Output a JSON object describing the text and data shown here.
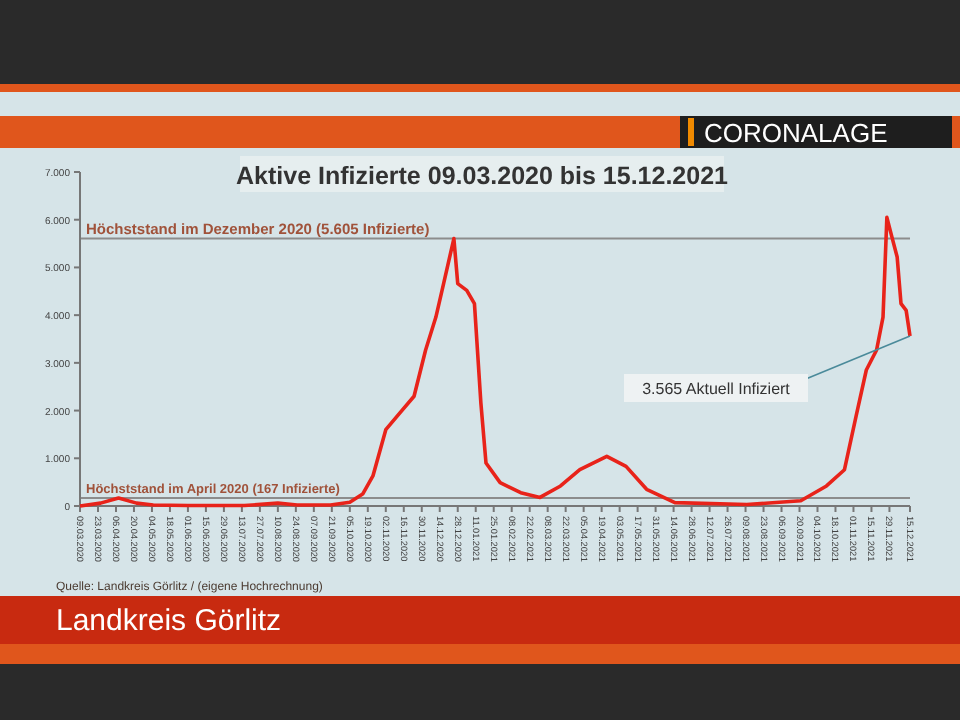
{
  "chart_data": {
    "type": "line",
    "title": "Aktive Infizierte 09.03.2020 bis 15.12.2021",
    "subtitle": "CORONALAGE",
    "x": [
      "2020-03-09",
      "2020-03-25",
      "2020-04-08",
      "2020-04-22",
      "2020-05-05",
      "2020-06-01",
      "2020-07-15",
      "2020-08-10",
      "2020-08-25",
      "2020-09-20",
      "2020-10-05",
      "2020-10-15",
      "2020-10-23",
      "2020-11-02",
      "2020-11-13",
      "2020-11-24",
      "2020-12-03",
      "2020-12-11",
      "2020-12-17",
      "2020-12-25",
      "2020-12-28",
      "2021-01-04",
      "2021-01-10",
      "2021-01-15",
      "2021-01-19",
      "2021-01-30",
      "2021-02-15",
      "2021-03-02",
      "2021-03-18",
      "2021-04-02",
      "2021-04-23",
      "2021-05-08",
      "2021-05-24",
      "2021-06-15",
      "2021-08-10",
      "2021-09-21",
      "2021-10-11",
      "2021-10-25",
      "2021-11-03",
      "2021-11-11",
      "2021-11-19",
      "2021-11-24",
      "2021-11-27",
      "2021-12-01",
      "2021-12-05",
      "2021-12-08",
      "2021-12-12",
      "2021-12-15"
    ],
    "series": [
      {
        "color": "#e8231a",
        "values": [
          0,
          60,
          167,
          60,
          20,
          10,
          10,
          60,
          20,
          20,
          80,
          250,
          630,
          1600,
          1950,
          2300,
          3270,
          3960,
          4660,
          5605,
          4660,
          4520,
          4240,
          2160,
          900,
          490,
          280,
          180,
          420,
          760,
          1040,
          830,
          350,
          70,
          30,
          110,
          420,
          760,
          1880,
          2850,
          3270,
          3960,
          6050,
          5630,
          5220,
          4240,
          4100,
          3565
        ]
      }
    ],
    "xlim": [
      "2020-03-09",
      "2021-12-15"
    ],
    "xticks": [
      {
        "value": "2020-03-09",
        "label": "09.03.2020"
      },
      {
        "value": "2020-03-23",
        "label": "23.03.2020"
      },
      {
        "value": "2020-04-06",
        "label": "06.04.2020"
      },
      {
        "value": "2020-04-20",
        "label": "20.04.2020"
      },
      {
        "value": "2020-05-04",
        "label": "04.05.2020"
      },
      {
        "value": "2020-05-18",
        "label": "18.05.2020"
      },
      {
        "value": "2020-06-01",
        "label": "01.06.2020"
      },
      {
        "value": "2020-06-15",
        "label": "15.06.2020"
      },
      {
        "value": "2020-06-29",
        "label": "29.06.2020"
      },
      {
        "value": "2020-07-13",
        "label": "13.07.2020"
      },
      {
        "value": "2020-07-27",
        "label": "27.07.2020"
      },
      {
        "value": "2020-08-10",
        "label": "10.08.2020"
      },
      {
        "value": "2020-08-24",
        "label": "24.08.2020"
      },
      {
        "value": "2020-09-07",
        "label": "07.09.2020"
      },
      {
        "value": "2020-09-21",
        "label": "21.09.2020"
      },
      {
        "value": "2020-10-05",
        "label": "05.10.2020"
      },
      {
        "value": "2020-10-19",
        "label": "19.10.2020"
      },
      {
        "value": "2020-11-02",
        "label": "02.11.2020"
      },
      {
        "value": "2020-11-16",
        "label": "16.11.2020"
      },
      {
        "value": "2020-11-30",
        "label": "30.11.2020"
      },
      {
        "value": "2020-12-14",
        "label": "14.12.2020"
      },
      {
        "value": "2020-12-28",
        "label": "28.12.2020"
      },
      {
        "value": "2021-01-11",
        "label": "11.01.2021"
      },
      {
        "value": "2021-01-25",
        "label": "25.01.2021"
      },
      {
        "value": "2021-02-08",
        "label": "08.02.2021"
      },
      {
        "value": "2021-02-22",
        "label": "22.02.2021"
      },
      {
        "value": "2021-03-08",
        "label": "08.03.2021"
      },
      {
        "value": "2021-03-22",
        "label": "22.03.2021"
      },
      {
        "value": "2021-04-05",
        "label": "05.04.2021"
      },
      {
        "value": "2021-04-19",
        "label": "19.04.2021"
      },
      {
        "value": "2021-05-03",
        "label": "03.05.2021"
      },
      {
        "value": "2021-05-17",
        "label": "17.05.2021"
      },
      {
        "value": "2021-05-31",
        "label": "31.05.2021"
      },
      {
        "value": "2021-06-14",
        "label": "14.06.2021"
      },
      {
        "value": "2021-06-28",
        "label": "28.06.2021"
      },
      {
        "value": "2021-07-12",
        "label": "12.07.2021"
      },
      {
        "value": "2021-07-26",
        "label": "26.07.2021"
      },
      {
        "value": "2021-08-09",
        "label": "09.08.2021"
      },
      {
        "value": "2021-08-23",
        "label": "23.08.2021"
      },
      {
        "value": "2021-09-06",
        "label": "06.09.2021"
      },
      {
        "value": "2021-09-20",
        "label": "20.09.2021"
      },
      {
        "value": "2021-10-04",
        "label": "04.10.2021"
      },
      {
        "value": "2021-10-18",
        "label": "18.10.2021"
      },
      {
        "value": "2021-11-01",
        "label": "01.11.2021"
      },
      {
        "value": "2021-11-15",
        "label": "15.11.2021"
      },
      {
        "value": "2021-11-29",
        "label": "29.11.2021"
      },
      {
        "value": "2021-12-15",
        "label": "15.12.2021"
      }
    ],
    "ylim": [
      0,
      7000
    ],
    "yticks": [
      0,
      {
        "value": 1000,
        "label": "1.000"
      },
      {
        "value": 2000,
        "label": "2.000"
      },
      {
        "value": 3000,
        "label": "3.000"
      },
      {
        "value": 4000,
        "label": "4.000"
      },
      {
        "value": 5000,
        "label": "5.000"
      },
      {
        "value": 6000,
        "label": "6.000"
      },
      {
        "value": 7000,
        "label": "7.000"
      }
    ],
    "ref_lines": [
      {
        "axis": "y",
        "value": 5605,
        "label": "Höchststand im Dezember 2020 (5.605 Infizierte)",
        "color": "#8c8c8c"
      },
      {
        "axis": "y",
        "value": 167,
        "label": "Höchststand im April 2020 (167 Infizierte)",
        "color": "#8c8c8c"
      }
    ],
    "annotations": [
      {
        "text": "3.565 Aktuell Infiziert",
        "x": "2021-12-15",
        "y": 3565
      },
      "Quelle: Landkreis Görlitz / (eigene Hochrechnung)",
      "Landkreis Görlitz"
    ],
    "grid": false,
    "marker": "none",
    "line_style": "solid"
  }
}
